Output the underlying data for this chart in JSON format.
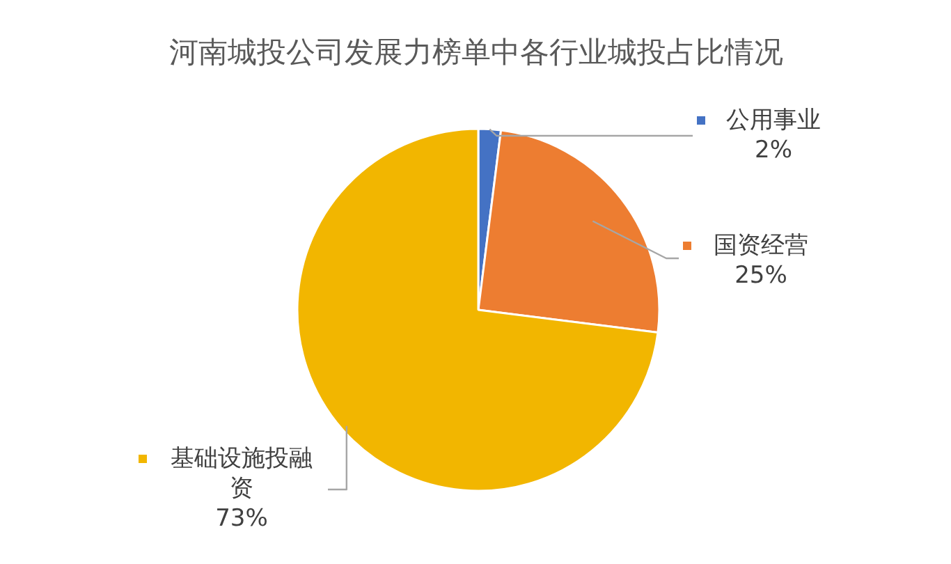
{
  "chart_data": {
    "type": "pie",
    "title": "河南城投公司发展力榜单中各行业城投占比情况",
    "categories": [
      "公用事业",
      "国资经营",
      "基础设施投融资"
    ],
    "values": [
      2,
      25,
      73
    ],
    "colors": [
      "#4472c4",
      "#ed7d31",
      "#f2b600"
    ],
    "value_labels": [
      "2%",
      "25%",
      "73%"
    ],
    "legend": true
  }
}
